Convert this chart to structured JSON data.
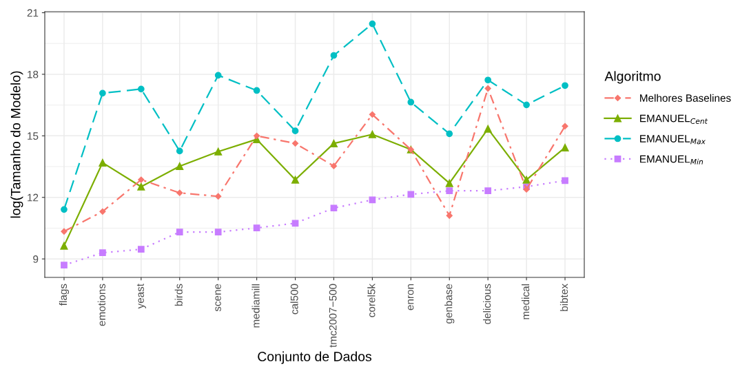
{
  "chart_data": {
    "type": "line",
    "xlabel": "Conjunto de Dados",
    "ylabel": "log(Tamanho do Modelo)",
    "legend_title": "Algoritmo",
    "categories": [
      "flags",
      "emotions",
      "yeast",
      "birds",
      "scene",
      "mediamill",
      "cal500",
      "tmc2007−500",
      "corel5k",
      "enron",
      "genbase",
      "delicious",
      "medical",
      "bibtex"
    ],
    "ylim": [
      8.1,
      21.05
    ],
    "yticks": [
      9,
      12,
      15,
      18,
      21
    ],
    "grid": true,
    "legend": "right",
    "series": [
      {
        "name": "Melhores Baselines",
        "color": "#f8766d",
        "marker": "diamond",
        "line_style": "dashdot",
        "values": [
          10.34,
          11.31,
          12.86,
          12.22,
          12.05,
          15.0,
          14.63,
          13.53,
          16.04,
          14.33,
          11.11,
          17.31,
          12.39,
          15.47
        ]
      },
      {
        "name": "EMANUEL$_{Cent}$",
        "color": "#7cae00",
        "marker": "triangle",
        "line_style": "solid",
        "values": [
          9.64,
          13.69,
          12.52,
          13.52,
          14.23,
          14.83,
          12.86,
          14.63,
          15.07,
          14.33,
          12.69,
          15.34,
          12.86,
          14.43
        ]
      },
      {
        "name": "EMANUEL$_{Max}$",
        "color": "#00bfc4",
        "marker": "circle",
        "line_style": "dashed",
        "values": [
          11.41,
          17.08,
          17.28,
          14.26,
          17.95,
          17.21,
          15.24,
          18.92,
          20.46,
          16.64,
          15.1,
          17.72,
          16.51,
          17.45
        ]
      },
      {
        "name": "EMANUEL$_{Min}$",
        "color": "#c77cff",
        "marker": "square",
        "line_style": "dotted",
        "values": [
          8.7,
          9.3,
          9.47,
          10.31,
          10.31,
          10.51,
          10.74,
          11.48,
          11.88,
          12.15,
          12.32,
          12.32,
          12.52,
          12.82
        ]
      }
    ]
  }
}
